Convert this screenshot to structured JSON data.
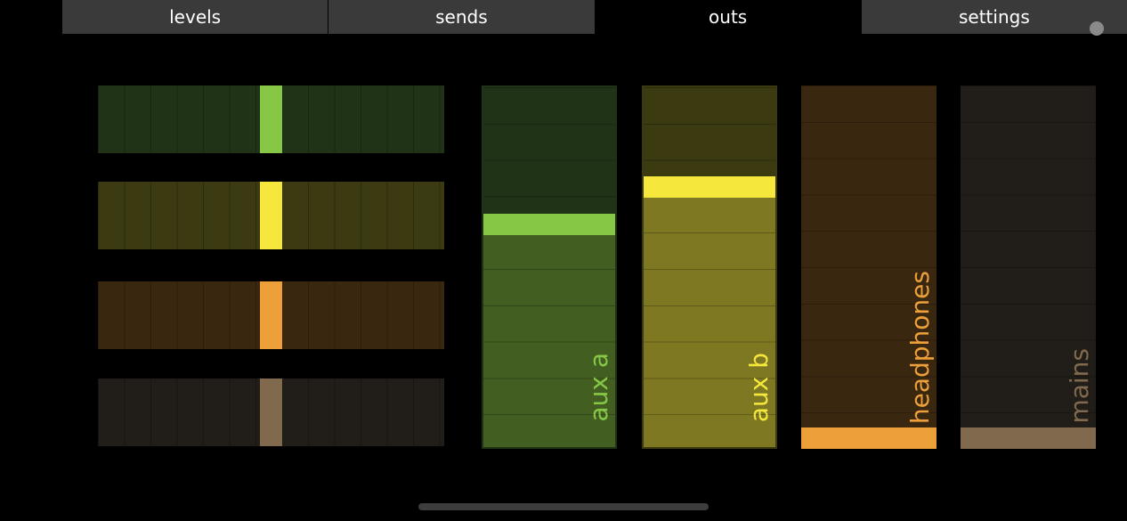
{
  "tabs": [
    {
      "label": "levels",
      "active": false
    },
    {
      "label": "sends",
      "active": false
    },
    {
      "label": "outs",
      "active": true
    },
    {
      "label": "settings",
      "active": false
    }
  ],
  "pans": [
    {
      "name": "pan-aux-a",
      "bg": "#203317",
      "knob": "#86c846"
    },
    {
      "name": "pan-aux-b",
      "bg": "#3b3a11",
      "knob": "#f5e73c"
    },
    {
      "name": "pan-headphones",
      "bg": "#3a2710",
      "knob": "#eda03a"
    },
    {
      "name": "pan-mains",
      "bg": "#211d18",
      "knob": "#80694d"
    }
  ],
  "faders": [
    {
      "label": "aux a",
      "level": 0.62,
      "bg": "#203317",
      "fill": "#425f21",
      "handle": "#86c846",
      "label_color": "#86c846"
    },
    {
      "label": "aux b",
      "level": 0.73,
      "bg": "#3b3a11",
      "fill": "#7d7821",
      "handle": "#f5e73c",
      "label_color": "#f5e73c"
    },
    {
      "label": "headphones",
      "level": 0.0,
      "bg": "#3a2710",
      "fill": "#3a2710",
      "handle": "#eda03a",
      "label_color": "#eda03a"
    },
    {
      "label": "mains",
      "level": 0.0,
      "bg": "#211d18",
      "fill": "#211d18",
      "handle": "#80694d",
      "label_color": "#80694d"
    }
  ]
}
